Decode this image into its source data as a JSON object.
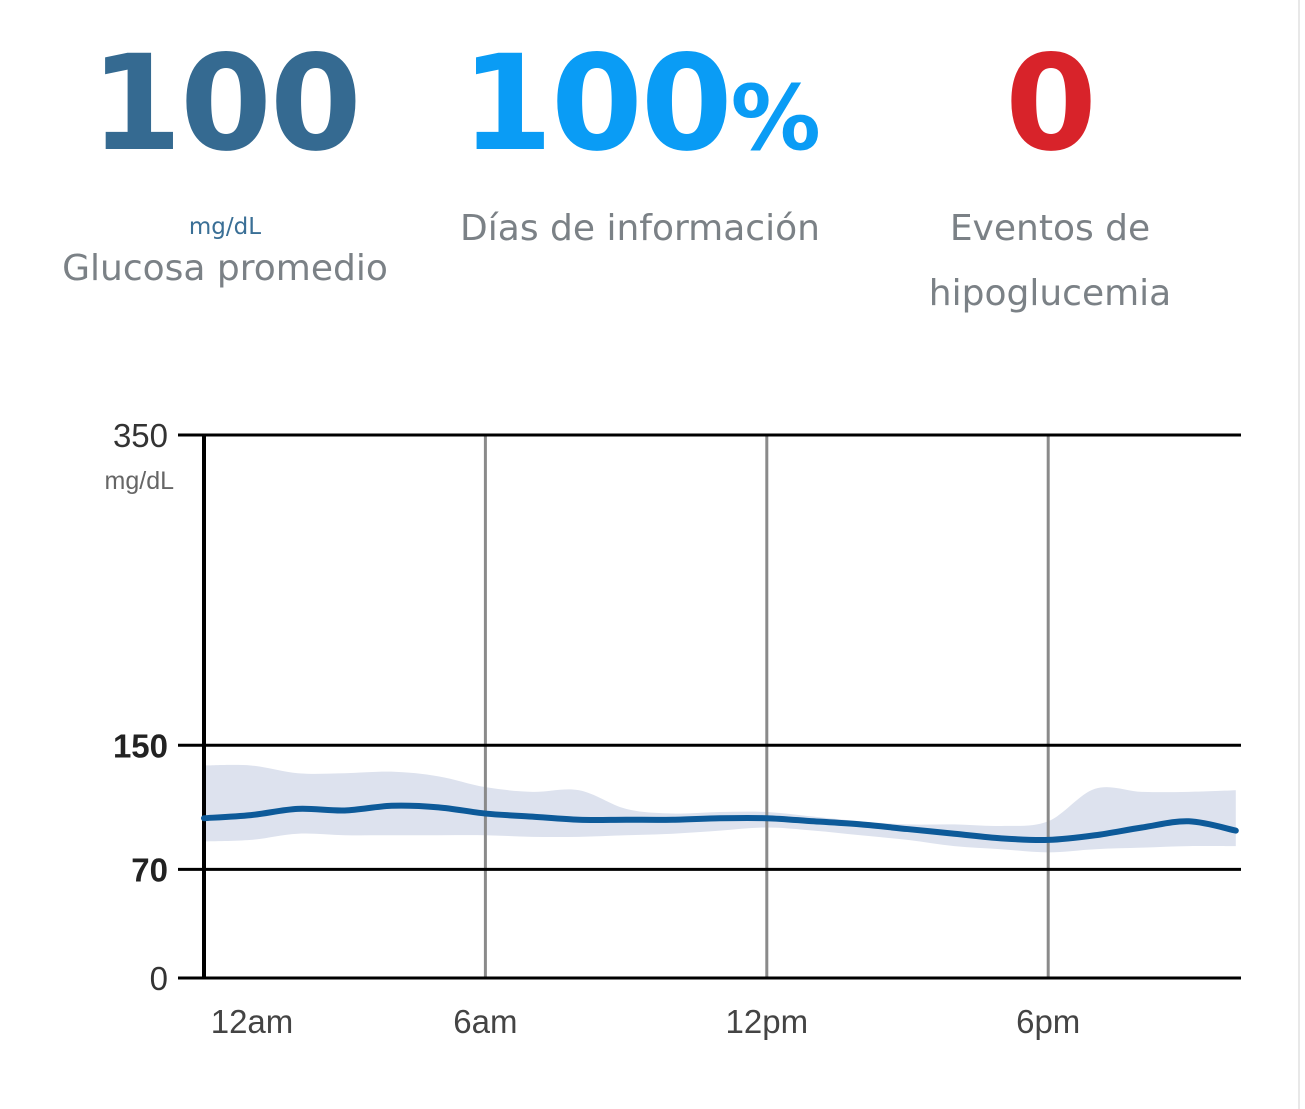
{
  "stats": {
    "avg": {
      "value": "100",
      "unit": "mg/dL",
      "label": "Glucosa promedio",
      "color": "#356a91"
    },
    "days": {
      "value": "100",
      "suffix": "%",
      "label": "Días de información",
      "color": "#0a9cf5"
    },
    "hypo": {
      "value": "0",
      "label_line1": "Eventos de",
      "label_line2": "hipoglucemia",
      "color": "#d8232a"
    }
  },
  "chart_data": {
    "type": "area",
    "x_ticks": [
      "12am",
      "6am",
      "12pm",
      "6pm"
    ],
    "y_ticks": [
      {
        "value": 0,
        "label": "0"
      },
      {
        "value": 70,
        "label": "70",
        "bold": true
      },
      {
        "value": 150,
        "label": "150",
        "bold": true
      },
      {
        "value": 350,
        "label": "350"
      }
    ],
    "y_unit": "mg/dL",
    "ylim": [
      0,
      350
    ],
    "xlim_hours": [
      0,
      22.1
    ],
    "target_range": [
      70,
      150
    ],
    "median_color": "#0d5a99",
    "band_color": "#dde2ee",
    "median": [
      [
        0,
        103
      ],
      [
        1,
        105
      ],
      [
        2,
        109
      ],
      [
        3,
        108
      ],
      [
        4,
        111
      ],
      [
        5,
        110
      ],
      [
        6,
        106
      ],
      [
        7,
        104
      ],
      [
        8,
        102
      ],
      [
        9,
        102
      ],
      [
        10,
        102
      ],
      [
        11,
        103
      ],
      [
        12,
        103
      ],
      [
        13,
        101
      ],
      [
        14,
        99
      ],
      [
        15,
        96
      ],
      [
        16,
        93
      ],
      [
        17,
        90
      ],
      [
        18,
        89
      ],
      [
        19,
        92
      ],
      [
        20,
        97
      ],
      [
        21,
        101
      ],
      [
        22,
        95
      ]
    ],
    "band_upper": [
      [
        0,
        137
      ],
      [
        1,
        137
      ],
      [
        2,
        132
      ],
      [
        3,
        132
      ],
      [
        4,
        133
      ],
      [
        5,
        130
      ],
      [
        6,
        123
      ],
      [
        7,
        120
      ],
      [
        8,
        121
      ],
      [
        9,
        109
      ],
      [
        10,
        106
      ],
      [
        11,
        107
      ],
      [
        12,
        107
      ],
      [
        13,
        104
      ],
      [
        14,
        101
      ],
      [
        15,
        99
      ],
      [
        16,
        99
      ],
      [
        17,
        98
      ],
      [
        18,
        101
      ],
      [
        19,
        122
      ],
      [
        20,
        120
      ],
      [
        21,
        120
      ],
      [
        22,
        121
      ]
    ],
    "band_lower": [
      [
        0,
        88
      ],
      [
        1,
        89
      ],
      [
        2,
        93
      ],
      [
        3,
        92
      ],
      [
        4,
        92
      ],
      [
        5,
        92
      ],
      [
        6,
        92
      ],
      [
        7,
        91
      ],
      [
        8,
        91
      ],
      [
        9,
        92
      ],
      [
        10,
        93
      ],
      [
        11,
        95
      ],
      [
        12,
        97
      ],
      [
        13,
        95
      ],
      [
        14,
        92
      ],
      [
        15,
        89
      ],
      [
        16,
        85
      ],
      [
        17,
        83
      ],
      [
        18,
        81
      ],
      [
        19,
        83
      ],
      [
        20,
        84
      ],
      [
        21,
        85
      ],
      [
        22,
        85
      ]
    ]
  }
}
